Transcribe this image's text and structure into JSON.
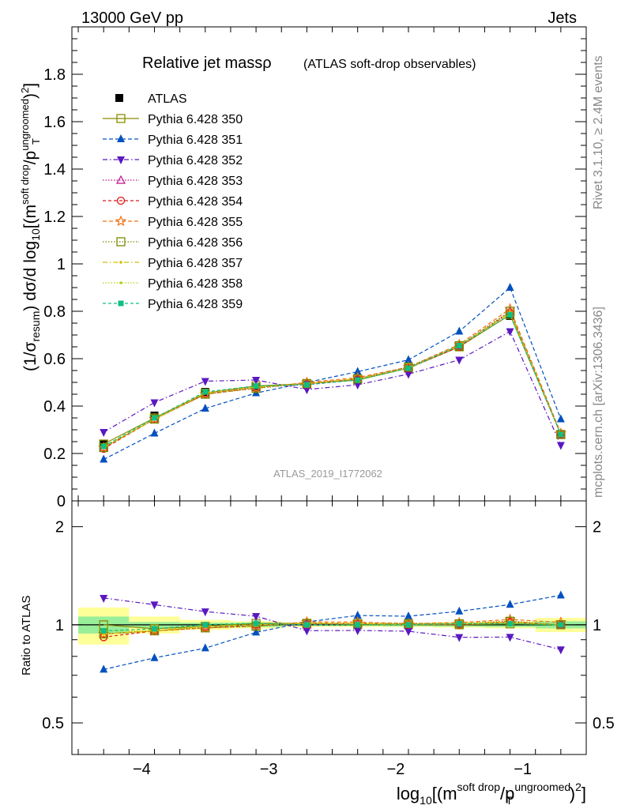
{
  "header": {
    "left": "13000 GeV pp",
    "right": "Jets"
  },
  "side_labels": {
    "rivet": "Rivet 3.1.10, ≥ 2.4M events",
    "mcplots": "mcplots.cern.ch [arXiv:1306.3436]"
  },
  "chart_data": {
    "type": "line",
    "title_main": "Relative jet massρ",
    "title_sub": "(ATLAS soft-drop observables)",
    "watermark": "ATLAS_2019_I1772062",
    "ylabel_parts": {
      "a": "(1/σ",
      "a_sub": "resum",
      "b": ") dσ/d log",
      "b_sub": "10",
      "c": "[(m",
      "c_sup": "soft drop",
      "d": "/p",
      "d_sup": "ungroomed",
      "d_sub": "T",
      "e": ")",
      "e_sup": "2",
      "f": "]"
    },
    "xlabel_parts": {
      "a": "log",
      "a_sub": "10",
      "b": "[(m",
      "b_sup": "soft drop",
      "c": "/p",
      "c_sup": "ungroomed",
      "c_sub": "T",
      "d": ")",
      "d_sup": "2",
      "e": "]"
    },
    "ratio_ylabel": "Ratio to ATLAS",
    "xlim": [
      -4.55,
      -0.5
    ],
    "ylim": [
      0,
      2
    ],
    "ratio_ylim": [
      0.4,
      2.4
    ],
    "ratio_log": true,
    "x_ticks": [
      -4,
      -3,
      -2,
      -1
    ],
    "x_tick_labels": [
      "−4",
      "−3",
      "−2",
      "−1"
    ],
    "y_ticks": [
      0,
      0.2,
      0.4,
      0.6,
      0.8,
      1,
      1.2,
      1.4,
      1.6,
      1.8
    ],
    "y_tick_labels": [
      "0",
      "0.2",
      "0.4",
      "0.6",
      "0.8",
      "1",
      "1.2",
      "1.4",
      "1.6",
      "1.8"
    ],
    "ratio_ticks": [
      0.5,
      1,
      2
    ],
    "ratio_tick_labels": [
      "0.5",
      "1",
      "2"
    ],
    "legend_position": "top-left",
    "x_bins": [
      [
        -4.5,
        -4.1
      ],
      [
        -4.1,
        -3.7
      ],
      [
        -3.7,
        -3.3
      ],
      [
        -3.3,
        -2.9
      ],
      [
        -2.9,
        -2.5
      ],
      [
        -2.5,
        -2.1
      ],
      [
        -2.1,
        -1.7
      ],
      [
        -1.7,
        -1.3
      ],
      [
        -1.3,
        -0.9
      ],
      [
        -0.9,
        -0.5
      ]
    ],
    "x": [
      -4.3,
      -3.9,
      -3.5,
      -3.1,
      -2.7,
      -2.3,
      -1.9,
      -1.5,
      -1.1,
      -0.7
    ],
    "data": {
      "name": "ATLAS",
      "values": [
        0.24,
        0.36,
        0.46,
        0.48,
        0.49,
        0.51,
        0.56,
        0.65,
        0.78,
        0.28
      ],
      "stat_band": [
        0.12,
        0.04,
        0.03,
        0.03,
        0.015,
        0.015,
        0.02,
        0.025,
        0.03,
        0.05
      ],
      "total_band": [
        0.26,
        0.12,
        0.07,
        0.05,
        0.03,
        0.03,
        0.03,
        0.04,
        0.05,
        0.1
      ]
    },
    "series": [
      {
        "name": "Pythia 6.428 350",
        "color": "#8b8b00",
        "dash": "",
        "marker": "square-open",
        "values": [
          0.24,
          0.35,
          0.455,
          0.485,
          0.495,
          0.51,
          0.56,
          0.65,
          0.785,
          0.28
        ]
      },
      {
        "name": "Pythia 6.428 351",
        "color": "#0050c0",
        "dash": "5,3",
        "marker": "triangle-up",
        "values": [
          0.175,
          0.285,
          0.39,
          0.455,
          0.5,
          0.545,
          0.595,
          0.715,
          0.9,
          0.345
        ]
      },
      {
        "name": "Pythia 6.428 352",
        "color": "#5a18c0",
        "dash": "6,3,1.5,3",
        "marker": "triangle-down",
        "values": [
          0.29,
          0.415,
          0.505,
          0.51,
          0.47,
          0.49,
          0.535,
          0.595,
          0.715,
          0.235
        ]
      },
      {
        "name": "Pythia 6.428 353",
        "color": "#c0108a",
        "dash": "1.5,2",
        "marker": "triangle-open",
        "values": [
          0.225,
          0.345,
          0.455,
          0.48,
          0.49,
          0.515,
          0.565,
          0.655,
          0.8,
          0.28
        ]
      },
      {
        "name": "Pythia 6.428 354",
        "color": "#e01818",
        "dash": "4,3",
        "marker": "circle-open",
        "values": [
          0.22,
          0.345,
          0.45,
          0.48,
          0.495,
          0.515,
          0.56,
          0.65,
          0.795,
          0.28
        ]
      },
      {
        "name": "Pythia 6.428 355",
        "color": "#f07010",
        "dash": "5,3",
        "marker": "star-open",
        "values": [
          0.225,
          0.345,
          0.45,
          0.475,
          0.5,
          0.52,
          0.565,
          0.66,
          0.81,
          0.285
        ]
      },
      {
        "name": "Pythia 6.428 356",
        "color": "#7a8a00",
        "dash": "1.5,2",
        "marker": "square-open",
        "values": [
          0.225,
          0.345,
          0.45,
          0.475,
          0.495,
          0.515,
          0.565,
          0.655,
          0.8,
          0.28
        ]
      },
      {
        "name": "Pythia 6.428 357",
        "color": "#d0c000",
        "dash": "6,3,1.5,3",
        "marker": "dot",
        "values": [
          0.225,
          0.345,
          0.455,
          0.48,
          0.495,
          0.515,
          0.56,
          0.655,
          0.795,
          0.28
        ]
      },
      {
        "name": "Pythia 6.428 358",
        "color": "#b8d010",
        "dash": "1.5,2",
        "marker": "dot",
        "values": [
          0.23,
          0.345,
          0.455,
          0.48,
          0.495,
          0.515,
          0.56,
          0.655,
          0.79,
          0.28
        ]
      },
      {
        "name": "Pythia 6.428 359",
        "color": "#10c080",
        "dash": "4,3",
        "marker": "square-filled",
        "values": [
          0.23,
          0.35,
          0.46,
          0.485,
          0.49,
          0.51,
          0.56,
          0.655,
          0.785,
          0.28
        ]
      }
    ]
  }
}
